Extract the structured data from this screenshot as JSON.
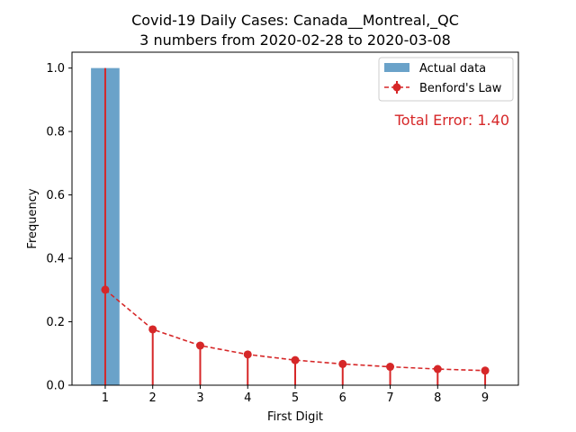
{
  "chart_data": {
    "type": "bar",
    "title": "Covid-19 Daily Cases: Canada__Montreal,_QC",
    "subtitle": "3 numbers from 2020-02-28 to 2020-03-08",
    "xlabel": "First Digit",
    "ylabel": "Frequency",
    "categories": [
      "1",
      "2",
      "3",
      "4",
      "5",
      "6",
      "7",
      "8",
      "9"
    ],
    "x": [
      1,
      2,
      3,
      4,
      5,
      6,
      7,
      8,
      9
    ],
    "xlim": [
      0.3,
      9.7
    ],
    "ylim": [
      0,
      1.05
    ],
    "yticks": [
      0.0,
      0.2,
      0.4,
      0.6,
      0.8,
      1.0
    ],
    "ytick_labels": [
      "0.0",
      "0.2",
      "0.4",
      "0.6",
      "0.8",
      "1.0"
    ],
    "grid": false,
    "legend_position": "top-right",
    "series": [
      {
        "name": "Actual data",
        "type": "bar",
        "color": "#6aa2c9",
        "values": [
          1.0,
          0,
          0,
          0,
          0,
          0,
          0,
          0,
          0
        ]
      },
      {
        "name": "Benford's Law",
        "type": "line-errorbar",
        "color": "#d62728",
        "values": [
          0.301,
          0.176,
          0.125,
          0.097,
          0.079,
          0.067,
          0.058,
          0.051,
          0.046
        ],
        "error_low": [
          0.301,
          0.176,
          0.125,
          0.097,
          0.079,
          0.067,
          0.058,
          0.051,
          0.046
        ],
        "error_high": [
          0.699,
          0,
          0,
          0,
          0,
          0,
          0,
          0,
          0
        ]
      }
    ],
    "annotation": {
      "text": "Total Error: 1.40",
      "color": "#d62728"
    }
  }
}
